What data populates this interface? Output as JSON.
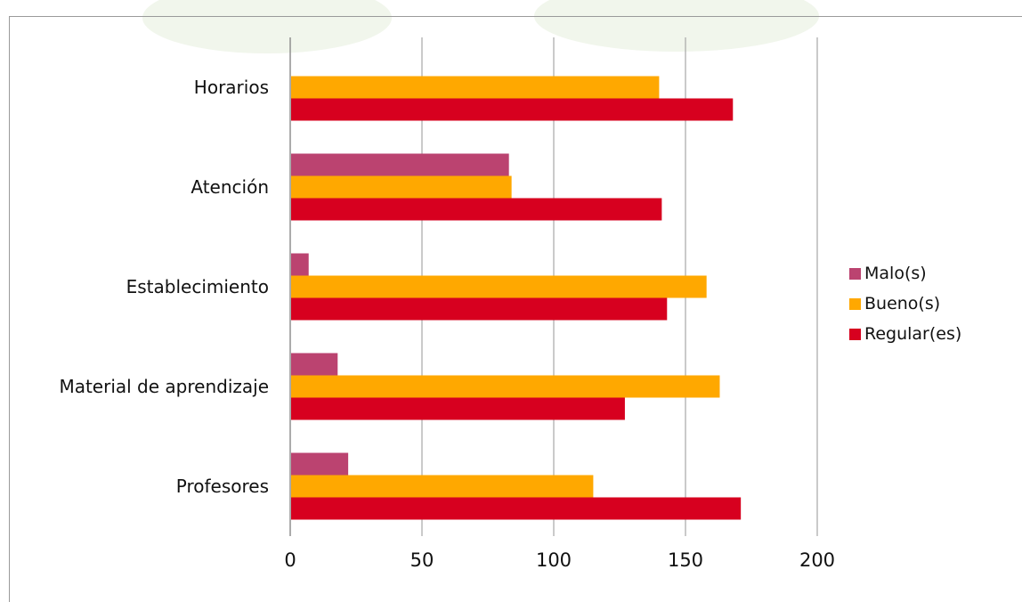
{
  "chart_data": {
    "type": "bar",
    "orientation": "horizontal",
    "categories": [
      "Horarios",
      "Atención",
      "Establecimiento",
      "Material de aprendizaje",
      "Profesores"
    ],
    "series": [
      {
        "name": "Malo(s)",
        "color": "#bb4370",
        "values": [
          0,
          83,
          7,
          18,
          22
        ]
      },
      {
        "name": "Bueno(s)",
        "color": "#ffa800",
        "values": [
          140,
          84,
          158,
          163,
          115
        ]
      },
      {
        "name": "Regular(es)",
        "color": "#d7001f",
        "values": [
          168,
          141,
          143,
          127,
          171
        ]
      }
    ],
    "xlim": [
      0,
      200
    ],
    "xticks": [
      "0",
      "50",
      "100",
      "150",
      "200"
    ],
    "grid": "vertical",
    "legend_position": "right"
  }
}
